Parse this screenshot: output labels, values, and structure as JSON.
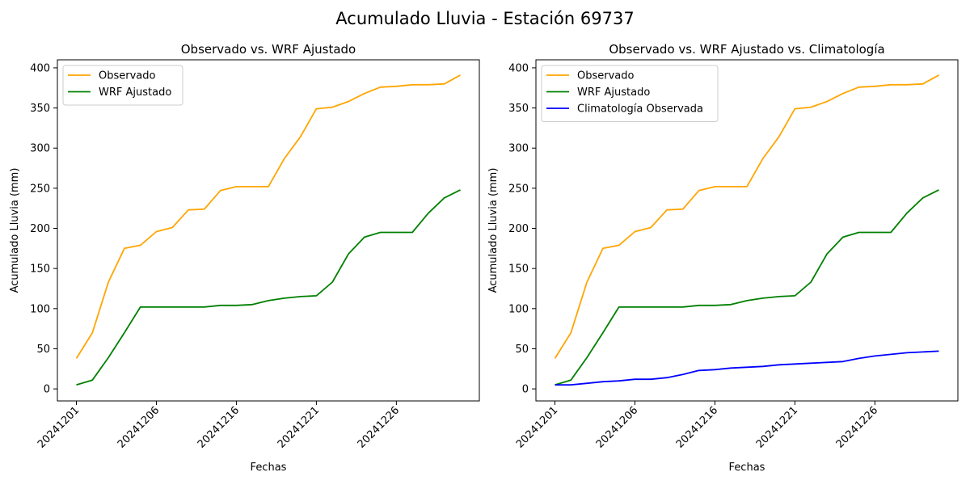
{
  "figure_title": "Acumulado Lluvia - Estación 69737",
  "colors": {
    "observado": "#FFA500",
    "wrf": "#008000",
    "clima": "#0000FF"
  },
  "chart_data": [
    {
      "type": "line",
      "title": "Observado vs. WRF Ajustado",
      "xlabel": "Fechas",
      "ylabel": "Acumulado Lluvia (mm)",
      "ylim": [
        -15,
        410
      ],
      "yticks": [
        0,
        50,
        100,
        150,
        200,
        250,
        300,
        350,
        400
      ],
      "x_tick_labels": [
        "20241201",
        "20241206",
        "20241216",
        "20241221",
        "20241226"
      ],
      "x_tick_index": [
        0,
        5,
        10,
        15,
        20
      ],
      "legend_position": "upper-left",
      "series": [
        {
          "name": "Observado",
          "color": "#FFA500",
          "values": [
            38,
            70,
            133,
            175,
            179,
            196,
            201,
            223,
            224,
            247,
            252,
            252,
            252,
            287,
            314,
            349,
            351,
            358,
            368,
            376,
            377,
            379,
            379,
            380,
            391
          ]
        },
        {
          "name": "WRF Ajustado",
          "color": "#008000",
          "values": [
            5,
            11,
            39,
            70,
            102,
            102,
            102,
            102,
            102,
            104,
            104,
            105,
            110,
            113,
            115,
            116,
            133,
            168,
            189,
            195,
            195,
            195,
            219,
            238,
            248
          ]
        }
      ]
    },
    {
      "type": "line",
      "title": "Observado vs. WRF Ajustado vs. Climatología",
      "xlabel": "Fechas",
      "ylabel": "Acumulado Lluvia (mm)",
      "ylim": [
        -15,
        410
      ],
      "yticks": [
        0,
        50,
        100,
        150,
        200,
        250,
        300,
        350,
        400
      ],
      "x_tick_labels": [
        "20241201",
        "20241206",
        "20241216",
        "20241221",
        "20241226"
      ],
      "x_tick_index": [
        0,
        5,
        10,
        15,
        20
      ],
      "legend_position": "upper-left",
      "series": [
        {
          "name": "Observado",
          "color": "#FFA500",
          "values": [
            38,
            70,
            133,
            175,
            179,
            196,
            201,
            223,
            224,
            247,
            252,
            252,
            252,
            287,
            314,
            349,
            351,
            358,
            368,
            376,
            377,
            379,
            379,
            380,
            391
          ]
        },
        {
          "name": "WRF Ajustado",
          "color": "#008000",
          "values": [
            5,
            11,
            39,
            70,
            102,
            102,
            102,
            102,
            102,
            104,
            104,
            105,
            110,
            113,
            115,
            116,
            133,
            168,
            189,
            195,
            195,
            195,
            219,
            238,
            248
          ]
        },
        {
          "name": "Climatología Observada",
          "color": "#0000FF",
          "values": [
            5,
            5,
            7,
            9,
            10,
            12,
            12,
            14,
            18,
            23,
            24,
            26,
            27,
            28,
            30,
            31,
            32,
            33,
            34,
            38,
            41,
            43,
            45,
            46,
            47
          ]
        }
      ]
    }
  ]
}
